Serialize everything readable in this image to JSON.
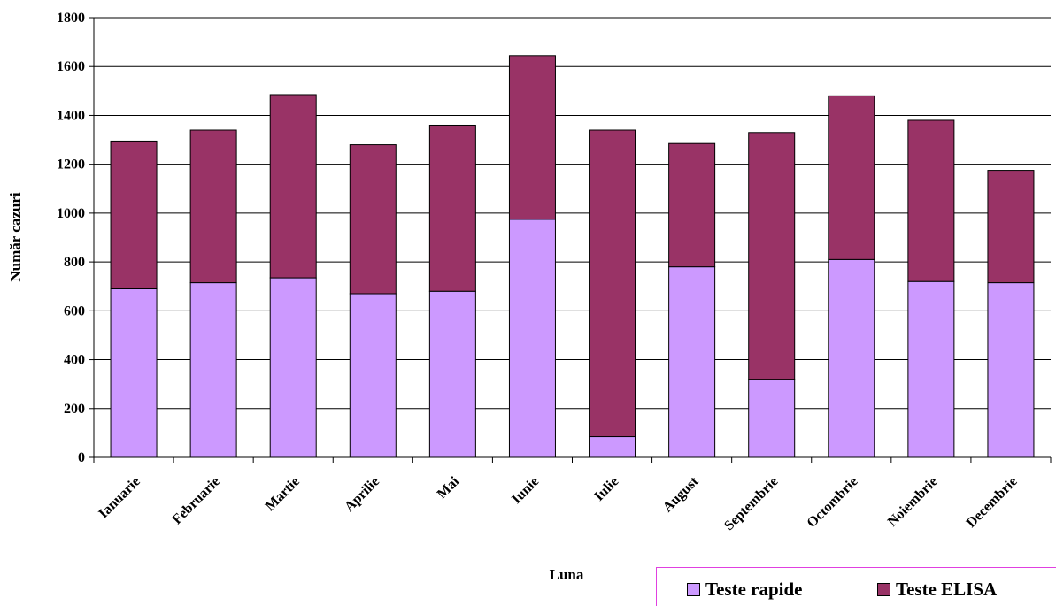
{
  "chart_data": {
    "type": "bar",
    "stacked": true,
    "categories": [
      "Ianuarie",
      "Februarie",
      "Martie",
      "Aprilie",
      "Mai",
      "Iunie",
      "Iulie",
      "August",
      "Septembrie",
      "Octombrie",
      "Noiembrie",
      "Decembrie"
    ],
    "series": [
      {
        "name": "Teste rapide",
        "color": "#cc99ff",
        "values": [
          690,
          715,
          735,
          670,
          680,
          975,
          85,
          780,
          320,
          810,
          720,
          715
        ]
      },
      {
        "name": "Teste ELISA",
        "color": "#993366",
        "values": [
          605,
          625,
          750,
          610,
          680,
          670,
          1255,
          505,
          1010,
          670,
          660,
          460
        ]
      }
    ],
    "xlabel": "Luna",
    "ylabel": "Număr cazuri",
    "ylim": [
      0,
      1800
    ],
    "yticks": [
      0,
      200,
      400,
      600,
      800,
      1000,
      1200,
      1400,
      1600,
      1800
    ],
    "grid": true,
    "legend_position": "bottom-right"
  }
}
